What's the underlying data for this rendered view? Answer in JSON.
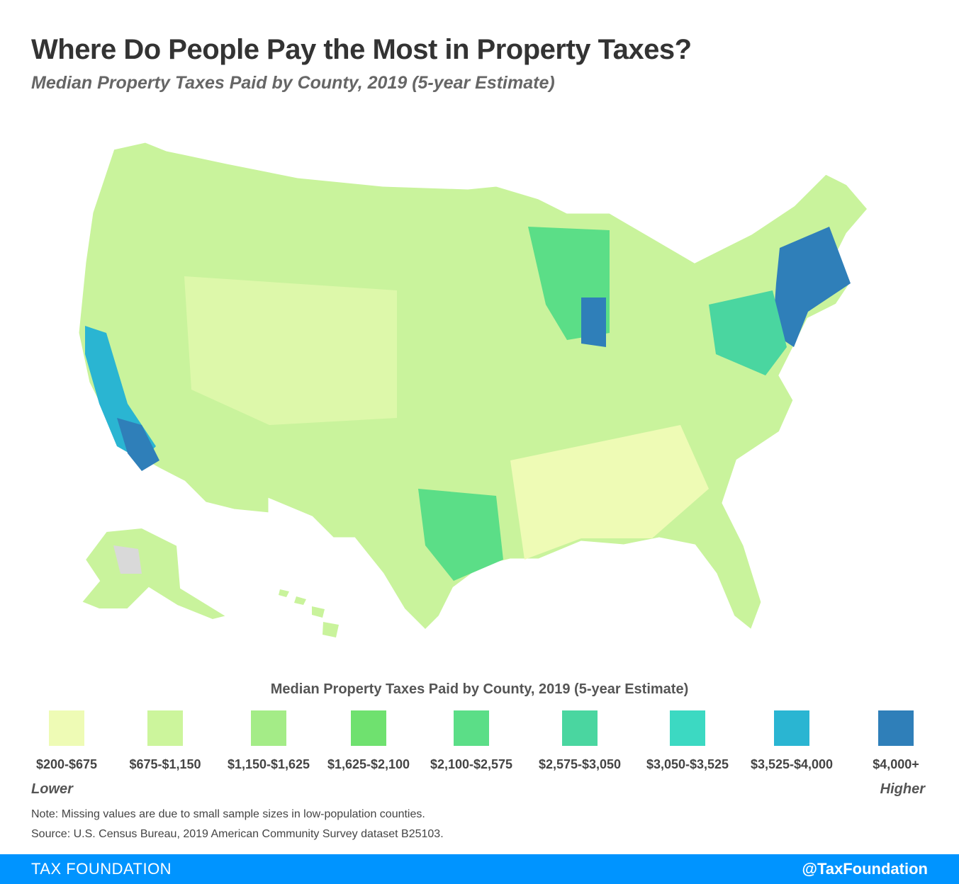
{
  "header": {
    "title": "Where Do People Pay the Most in Property Taxes?",
    "subtitle": "Median Property Taxes Paid by County, 2019 (5-year Estimate)"
  },
  "legend": {
    "title": "Median Property Taxes Paid by County, 2019 (5-year Estimate)",
    "low_label": "Lower",
    "high_label": "Higher",
    "bins": [
      {
        "label": "$200-$675",
        "color": "#eefbb5"
      },
      {
        "label": "$675-$1,150",
        "color": "#ccf59c"
      },
      {
        "label": "$1,150-$1,625",
        "color": "#a4ec87"
      },
      {
        "label": "$1,625-$2,100",
        "color": "#6fe16f"
      },
      {
        "label": "$2,100-$2,575",
        "color": "#5bde87"
      },
      {
        "label": "$2,575-$3,050",
        "color": "#4ad6a0"
      },
      {
        "label": "$3,050-$3,525",
        "color": "#3cd9c2"
      },
      {
        "label": "$3,525-$4,000",
        "color": "#2ab5d2"
      },
      {
        "label": "$4,000+",
        "color": "#2f7fb9"
      }
    ],
    "missing_color": "#d9d9d9"
  },
  "notes": {
    "note": "Note: Missing values are due to small sample sizes in low-population counties.",
    "source": "Source: U.S. Census Bureau, 2019 American Community Survey dataset B25103."
  },
  "footer": {
    "brand": "TAX FOUNDATION",
    "handle": "@TaxFoundation",
    "color": "#0094ff"
  }
}
